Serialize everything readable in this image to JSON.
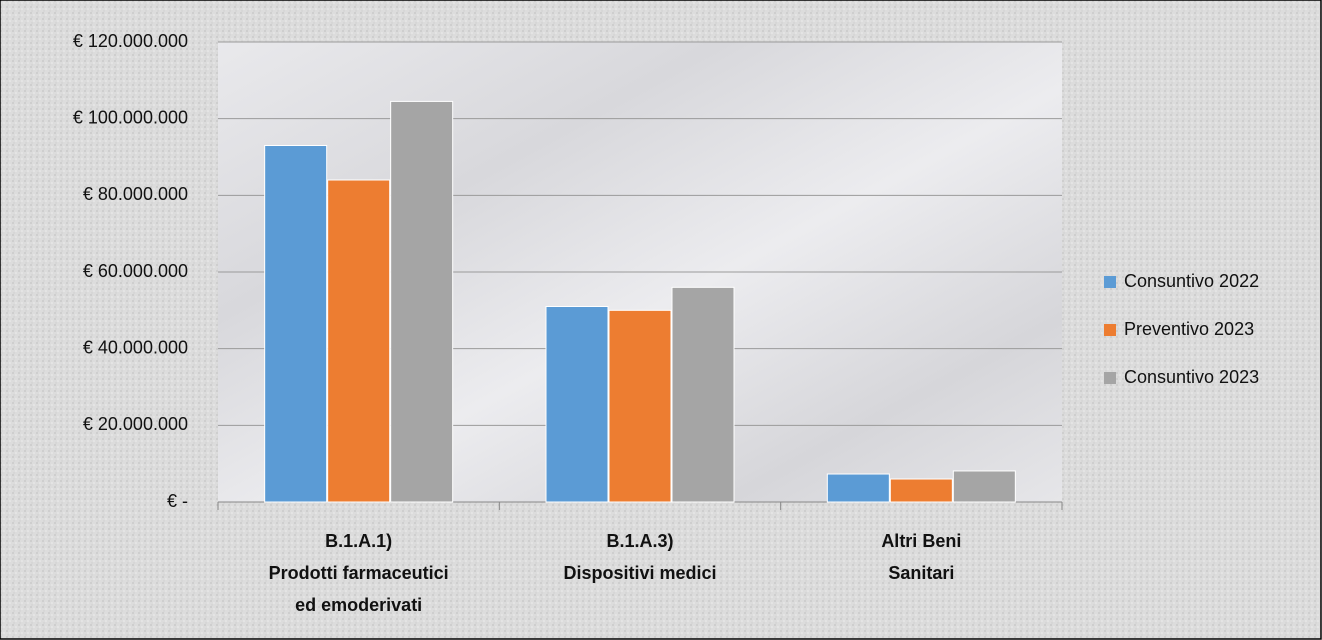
{
  "chart_data": {
    "type": "bar",
    "categories": [
      [
        "B.1.A.1)",
        "Prodotti farmaceutici",
        "ed emoderivati"
      ],
      [
        "B.1.A.3)",
        "Dispositivi medici"
      ],
      [
        "Altri Beni",
        "Sanitari"
      ]
    ],
    "series": [
      {
        "name": "Consuntivo 2022",
        "color": "#5b9bd5",
        "values": [
          93000000,
          51000000,
          7300000
        ]
      },
      {
        "name": "Preventivo 2023",
        "color": "#ed7d31",
        "values": [
          84000000,
          50000000,
          6000000
        ]
      },
      {
        "name": "Consuntivo 2023",
        "color": "#a5a5a5",
        "values": [
          104500000,
          56000000,
          8100000
        ]
      }
    ],
    "ylim": [
      0,
      120000000
    ],
    "yticks": [
      {
        "value": 0,
        "label": "€ -"
      },
      {
        "value": 20000000,
        "label": "€ 20.000.000"
      },
      {
        "value": 40000000,
        "label": "€ 40.000.000"
      },
      {
        "value": 60000000,
        "label": "€ 60.000.000"
      },
      {
        "value": 80000000,
        "label": "€ 80.000.000"
      },
      {
        "value": 100000000,
        "label": "€ 100.000.000"
      },
      {
        "value": 120000000,
        "label": "€ 120.000.000"
      }
    ],
    "grid": true,
    "legend": "right"
  }
}
